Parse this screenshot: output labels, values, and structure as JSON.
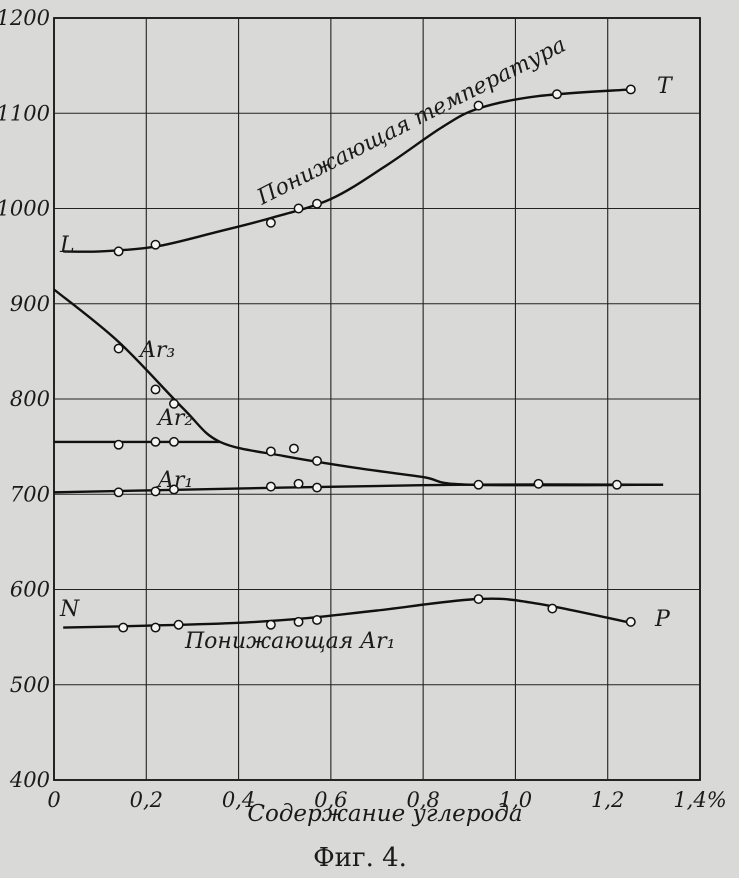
{
  "chart_data": {
    "type": "line",
    "xlabel": "Содержание углерода",
    "caption": "Фиг. 4.",
    "xlim": [
      0,
      1.4
    ],
    "ylim": [
      400,
      1200
    ],
    "x_ticks": [
      {
        "value": 0,
        "label": "0"
      },
      {
        "value": 0.2,
        "label": "0,2"
      },
      {
        "value": 0.4,
        "label": "0,4"
      },
      {
        "value": 0.6,
        "label": "0,6"
      },
      {
        "value": 0.8,
        "label": "0,8"
      },
      {
        "value": 1.0,
        "label": "1,0"
      },
      {
        "value": 1.2,
        "label": "1,2"
      },
      {
        "value": 1.4,
        "label": "1,4%"
      }
    ],
    "y_ticks": [
      {
        "value": 400,
        "label": "400"
      },
      {
        "value": 500,
        "label": "500"
      },
      {
        "value": 600,
        "label": "600"
      },
      {
        "value": 700,
        "label": "700"
      },
      {
        "value": 800,
        "label": "800"
      },
      {
        "value": 900,
        "label": "900"
      },
      {
        "value": 1000,
        "label": "1000"
      },
      {
        "value": 1100,
        "label": "1100"
      },
      {
        "value": 1200,
        "label": "1200"
      }
    ],
    "grid": true,
    "series": [
      {
        "key": "lowering_temp",
        "label": "Понижающая температура",
        "start_letter": "L",
        "end_letter": "T",
        "line": [
          [
            0.02,
            955
          ],
          [
            0.1,
            955
          ],
          [
            0.22,
            960
          ],
          [
            0.35,
            975
          ],
          [
            0.47,
            990
          ],
          [
            0.6,
            1010
          ],
          [
            0.72,
            1045
          ],
          [
            0.84,
            1085
          ],
          [
            0.92,
            1105
          ],
          [
            1.05,
            1118
          ],
          [
            1.25,
            1125
          ]
        ],
        "points": [
          [
            0.14,
            955
          ],
          [
            0.22,
            962
          ],
          [
            0.47,
            985
          ],
          [
            0.53,
            1000
          ],
          [
            0.57,
            1005
          ],
          [
            0.92,
            1108
          ],
          [
            1.09,
            1120
          ],
          [
            1.25,
            1125
          ]
        ]
      },
      {
        "key": "ar3",
        "label": "Ar₃",
        "line": [
          [
            0.0,
            915
          ],
          [
            0.14,
            860
          ],
          [
            0.28,
            790
          ],
          [
            0.36,
            755
          ],
          [
            0.5,
            740
          ],
          [
            0.65,
            728
          ],
          [
            0.8,
            718
          ],
          [
            0.9,
            710
          ],
          [
            1.32,
            710
          ]
        ],
        "points": [
          [
            0.14,
            853
          ],
          [
            0.22,
            810
          ],
          [
            0.26,
            795
          ]
        ]
      },
      {
        "key": "ar2",
        "label": "Ar₂",
        "line": [
          [
            0.0,
            755
          ],
          [
            0.36,
            755
          ]
        ],
        "points": [
          [
            0.14,
            752
          ],
          [
            0.22,
            755
          ],
          [
            0.26,
            755
          ],
          [
            0.47,
            745
          ],
          [
            0.52,
            748
          ],
          [
            0.57,
            735
          ]
        ]
      },
      {
        "key": "ar1",
        "label": "Ar₁",
        "line": [
          [
            0.0,
            702
          ],
          [
            0.2,
            704
          ],
          [
            0.5,
            707
          ],
          [
            0.9,
            710
          ],
          [
            1.32,
            710
          ]
        ],
        "points": [
          [
            0.14,
            702
          ],
          [
            0.22,
            703
          ],
          [
            0.26,
            705
          ],
          [
            0.47,
            708
          ],
          [
            0.53,
            711
          ],
          [
            0.57,
            707
          ],
          [
            0.92,
            710
          ],
          [
            1.05,
            711
          ],
          [
            1.22,
            710
          ]
        ]
      },
      {
        "key": "lowering_ar1",
        "label": "Понижающая Ar₁",
        "start_letter": "N",
        "end_letter": "P",
        "line": [
          [
            0.02,
            560
          ],
          [
            0.2,
            562
          ],
          [
            0.4,
            565
          ],
          [
            0.55,
            570
          ],
          [
            0.7,
            578
          ],
          [
            0.92,
            590
          ],
          [
            1.05,
            585
          ],
          [
            1.25,
            565
          ]
        ],
        "points": [
          [
            0.15,
            560
          ],
          [
            0.22,
            560
          ],
          [
            0.27,
            563
          ],
          [
            0.47,
            563
          ],
          [
            0.53,
            566
          ],
          [
            0.57,
            568
          ],
          [
            0.92,
            590
          ],
          [
            1.08,
            580
          ],
          [
            1.25,
            566
          ]
        ]
      }
    ]
  }
}
